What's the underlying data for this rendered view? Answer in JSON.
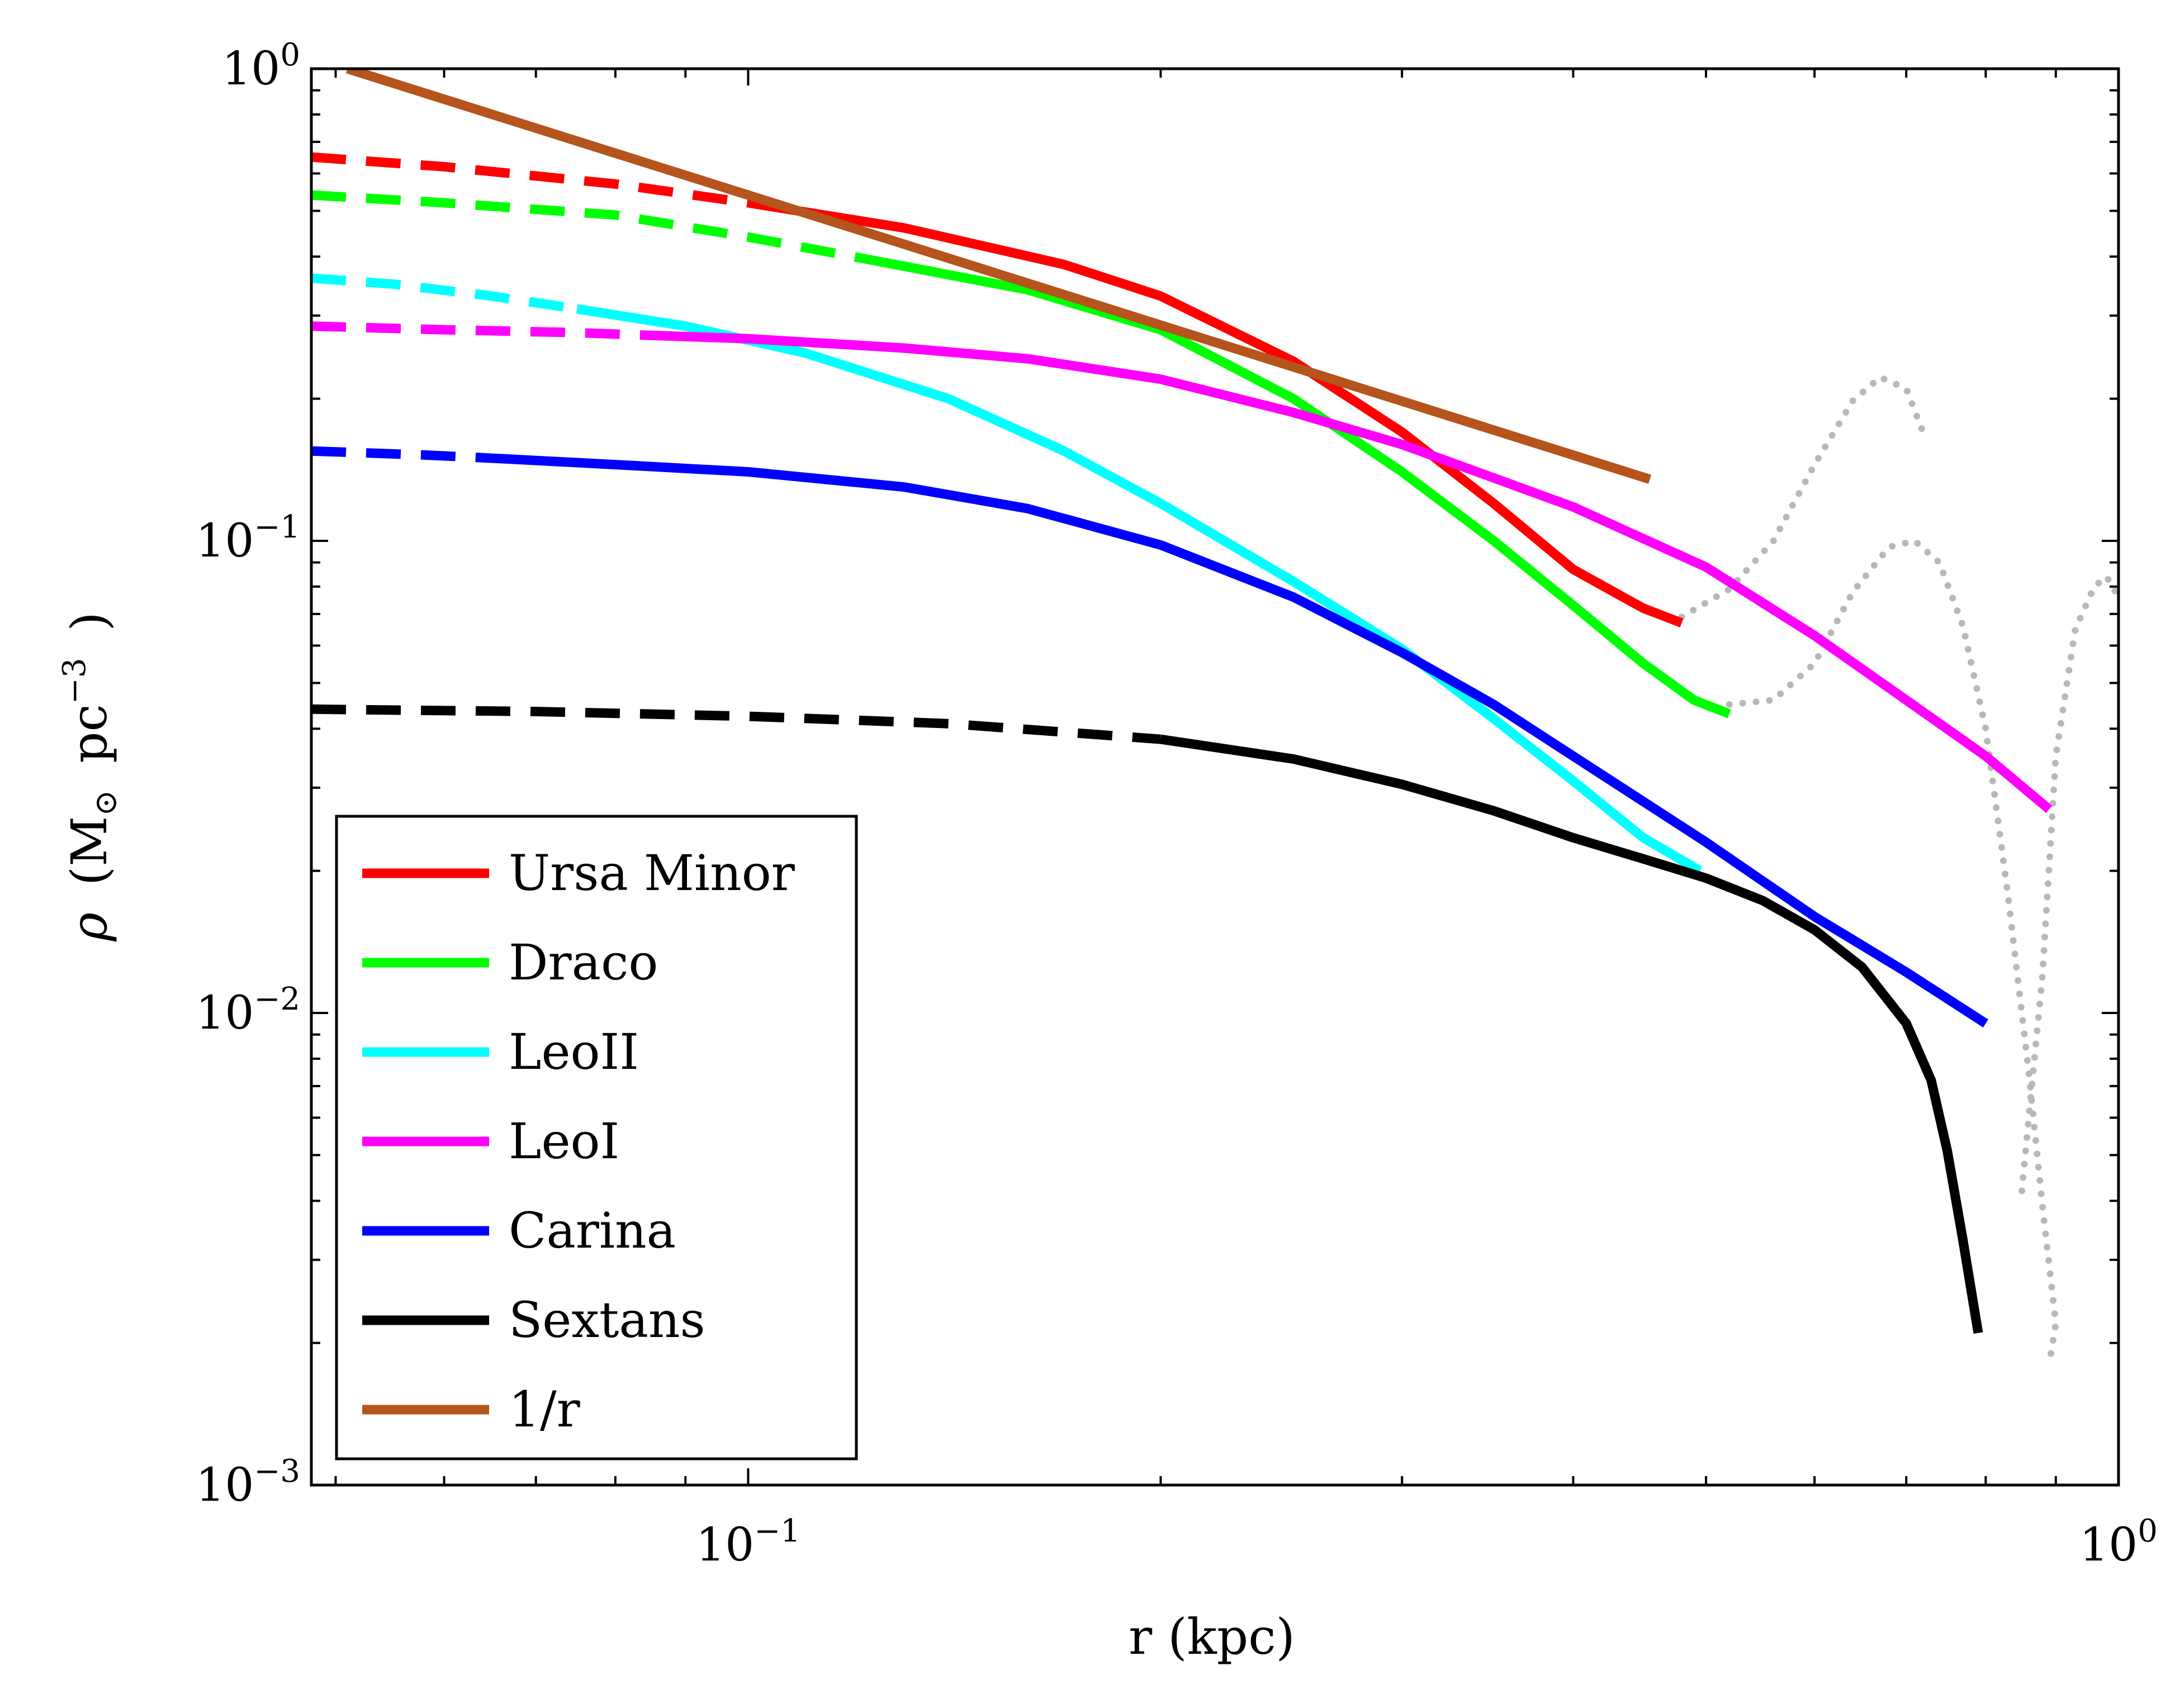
{
  "chart_data": {
    "type": "line",
    "xlabel": "r (kpc)",
    "ylabel": {
      "symbol": "ρ",
      "open": "(",
      "msun": "M",
      "sun": "⊙",
      "unit": "pc",
      "exp": "−3",
      "close": ")"
    },
    "xscale": "log",
    "yscale": "log",
    "xlim": [
      0.048,
      1.0
    ],
    "ylim": [
      0.001,
      1.0
    ],
    "x_ticks": [
      {
        "value": 0.1,
        "base": "10",
        "exp": "−1"
      },
      {
        "value": 1.0,
        "base": "10",
        "exp": "0"
      }
    ],
    "y_ticks": [
      {
        "value": 0.001,
        "base": "10",
        "exp": "−3"
      },
      {
        "value": 0.01,
        "base": "10",
        "exp": "−2"
      },
      {
        "value": 0.1,
        "base": "10",
        "exp": "−1"
      },
      {
        "value": 1.0,
        "base": "10",
        "exp": "0"
      }
    ],
    "legend_position": "bottom-left",
    "series": [
      {
        "name": "Ursa Minor",
        "color": "#ff0000",
        "dashed": [
          [
            0.048,
            0.65
          ],
          [
            0.06,
            0.62
          ],
          [
            0.08,
            0.57
          ],
          [
            0.1,
            0.52
          ]
        ],
        "solid": [
          [
            0.1,
            0.52
          ],
          [
            0.13,
            0.46
          ],
          [
            0.17,
            0.385
          ],
          [
            0.2,
            0.33
          ],
          [
            0.25,
            0.24
          ],
          [
            0.3,
            0.17
          ],
          [
            0.35,
            0.12
          ],
          [
            0.4,
            0.087
          ],
          [
            0.45,
            0.072
          ],
          [
            0.48,
            0.067
          ]
        ]
      },
      {
        "name": "Draco",
        "color": "#00ff00",
        "dashed": [
          [
            0.048,
            0.54
          ],
          [
            0.06,
            0.52
          ],
          [
            0.08,
            0.49
          ],
          [
            0.1,
            0.44
          ],
          [
            0.125,
            0.39
          ]
        ],
        "solid": [
          [
            0.125,
            0.39
          ],
          [
            0.16,
            0.34
          ],
          [
            0.2,
            0.28
          ],
          [
            0.25,
            0.2
          ],
          [
            0.3,
            0.14
          ],
          [
            0.35,
            0.1
          ],
          [
            0.4,
            0.073
          ],
          [
            0.45,
            0.055
          ],
          [
            0.49,
            0.046
          ],
          [
            0.52,
            0.043
          ]
        ]
      },
      {
        "name": "LeoII",
        "color": "#00ffff",
        "dashed": [
          [
            0.048,
            0.36
          ],
          [
            0.055,
            0.35
          ],
          [
            0.065,
            0.33
          ],
          [
            0.075,
            0.31
          ]
        ],
        "solid": [
          [
            0.075,
            0.31
          ],
          [
            0.09,
            0.285
          ],
          [
            0.11,
            0.25
          ],
          [
            0.14,
            0.2
          ],
          [
            0.17,
            0.155
          ],
          [
            0.2,
            0.12
          ],
          [
            0.25,
            0.082
          ],
          [
            0.3,
            0.059
          ],
          [
            0.35,
            0.042
          ],
          [
            0.4,
            0.031
          ],
          [
            0.45,
            0.0235
          ],
          [
            0.495,
            0.02
          ]
        ]
      },
      {
        "name": "LeoI",
        "color": "#ff00ff",
        "dashed": [
          [
            0.048,
            0.285
          ],
          [
            0.06,
            0.28
          ],
          [
            0.075,
            0.276
          ],
          [
            0.086,
            0.272
          ]
        ],
        "solid": [
          [
            0.086,
            0.272
          ],
          [
            0.1,
            0.268
          ],
          [
            0.13,
            0.256
          ],
          [
            0.16,
            0.243
          ],
          [
            0.2,
            0.22
          ],
          [
            0.25,
            0.187
          ],
          [
            0.3,
            0.16
          ],
          [
            0.4,
            0.118
          ],
          [
            0.5,
            0.088
          ],
          [
            0.6,
            0.063
          ],
          [
            0.7,
            0.046
          ],
          [
            0.8,
            0.035
          ],
          [
            0.89,
            0.027
          ]
        ]
      },
      {
        "name": "Carina",
        "color": "#0000ff",
        "dashed": [
          [
            0.048,
            0.155
          ],
          [
            0.058,
            0.152
          ],
          [
            0.064,
            0.15
          ]
        ],
        "solid": [
          [
            0.064,
            0.15
          ],
          [
            0.08,
            0.145
          ],
          [
            0.1,
            0.14
          ],
          [
            0.13,
            0.13
          ],
          [
            0.16,
            0.117
          ],
          [
            0.2,
            0.098
          ],
          [
            0.25,
            0.076
          ],
          [
            0.3,
            0.058
          ],
          [
            0.35,
            0.045
          ],
          [
            0.4,
            0.035
          ],
          [
            0.5,
            0.023
          ],
          [
            0.6,
            0.016
          ],
          [
            0.7,
            0.0122
          ],
          [
            0.8,
            0.0095
          ]
        ]
      },
      {
        "name": "Sextans",
        "color": "#000000",
        "dashed": [
          [
            0.048,
            0.044
          ],
          [
            0.07,
            0.0435
          ],
          [
            0.1,
            0.0425
          ],
          [
            0.14,
            0.041
          ],
          [
            0.2,
            0.038
          ]
        ],
        "solid": [
          [
            0.2,
            0.038
          ],
          [
            0.25,
            0.0345
          ],
          [
            0.3,
            0.0305
          ],
          [
            0.35,
            0.0268
          ],
          [
            0.4,
            0.0235
          ],
          [
            0.45,
            0.0212
          ],
          [
            0.5,
            0.0193
          ],
          [
            0.55,
            0.0173
          ],
          [
            0.6,
            0.015
          ],
          [
            0.65,
            0.0125
          ],
          [
            0.7,
            0.0095
          ],
          [
            0.73,
            0.0072
          ],
          [
            0.75,
            0.0051
          ],
          [
            0.77,
            0.0033
          ],
          [
            0.79,
            0.0021
          ]
        ]
      },
      {
        "name": "1/r",
        "color": "#b5541c",
        "dashed": [],
        "solid": [
          [
            0.051,
            1.0
          ],
          [
            0.455,
            0.135
          ]
        ]
      }
    ],
    "scatter_gray": [
      [
        [
          0.48,
          0.069
        ],
        [
          0.52,
          0.079
        ],
        [
          0.56,
          0.1
        ],
        [
          0.6,
          0.145
        ],
        [
          0.64,
          0.198
        ],
        [
          0.67,
          0.222
        ],
        [
          0.7,
          0.21
        ],
        [
          0.72,
          0.17
        ]
      ],
      [
        [
          0.52,
          0.045
        ],
        [
          0.56,
          0.046
        ],
        [
          0.6,
          0.055
        ],
        [
          0.64,
          0.078
        ],
        [
          0.68,
          0.097
        ],
        [
          0.71,
          0.1
        ],
        [
          0.74,
          0.09
        ],
        [
          0.77,
          0.066
        ],
        [
          0.8,
          0.04
        ],
        [
          0.83,
          0.018
        ],
        [
          0.86,
          0.0075
        ],
        [
          0.88,
          0.0039
        ],
        [
          0.9,
          0.0022
        ],
        [
          0.89,
          0.0018
        ]
      ],
      [
        [
          0.85,
          0.0042
        ],
        [
          0.88,
          0.012
        ],
        [
          0.9,
          0.035
        ],
        [
          0.93,
          0.065
        ],
        [
          0.96,
          0.08
        ],
        [
          0.98,
          0.084
        ],
        [
          1.0,
          0.076
        ]
      ]
    ]
  }
}
